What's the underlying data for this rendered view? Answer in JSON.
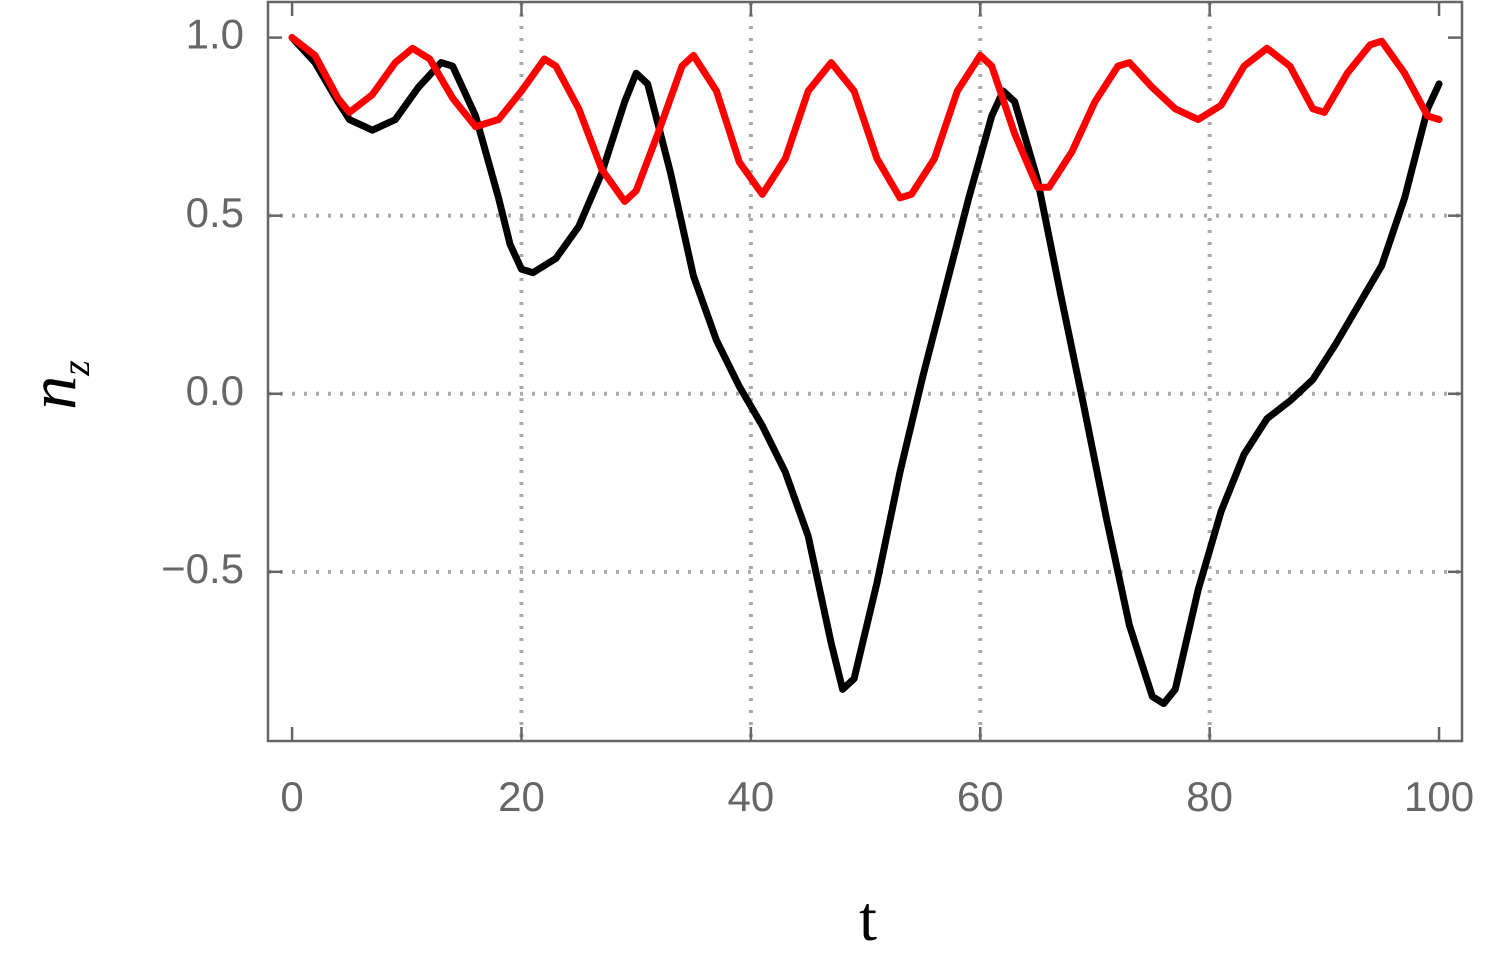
{
  "chart_data": {
    "type": "line",
    "xlabel": "t",
    "ylabel": {
      "base": "n",
      "subscript": "z"
    },
    "xlim": [
      -2.1,
      102
    ],
    "ylim": [
      -0.975,
      1.1
    ],
    "xticks": [
      0,
      20,
      40,
      60,
      80,
      100
    ],
    "yticks": [
      {
        "value": -0.5,
        "label": "−0.5"
      },
      {
        "value": 0,
        "label": "0.0"
      },
      0.5,
      {
        "value": 1,
        "label": "1.0"
      }
    ],
    "xgrid": [
      20,
      40,
      60,
      80
    ],
    "ygrid": [
      -0.5,
      0,
      0.5
    ],
    "series": [
      {
        "color": "#000000",
        "x": [
          0,
          2,
          4,
          5,
          7,
          9,
          11,
          13,
          14,
          16,
          18,
          19,
          20,
          21,
          23,
          25,
          27,
          29,
          30,
          31,
          33,
          35,
          37,
          39,
          41,
          43,
          45,
          47,
          48,
          49,
          51,
          53,
          55,
          57,
          59,
          61,
          62,
          63,
          65,
          67,
          69,
          71,
          73,
          75,
          76,
          77,
          79,
          81,
          83,
          85,
          87,
          89,
          91,
          93,
          95,
          97,
          99,
          100
        ],
        "values": [
          1.0,
          0.93,
          0.82,
          0.77,
          0.74,
          0.77,
          0.86,
          0.93,
          0.92,
          0.78,
          0.55,
          0.42,
          0.35,
          0.34,
          0.38,
          0.47,
          0.62,
          0.82,
          0.9,
          0.87,
          0.62,
          0.33,
          0.15,
          0.02,
          -0.09,
          -0.22,
          -0.4,
          -0.7,
          -0.83,
          -0.8,
          -0.53,
          -0.22,
          0.05,
          0.3,
          0.55,
          0.78,
          0.85,
          0.82,
          0.6,
          0.28,
          -0.03,
          -0.35,
          -0.65,
          -0.85,
          -0.87,
          -0.83,
          -0.55,
          -0.33,
          -0.17,
          -0.07,
          -0.02,
          0.04,
          0.14,
          0.25,
          0.36,
          0.55,
          0.8,
          0.87
        ]
      },
      {
        "color": "#ff0000",
        "x": [
          0,
          2,
          4,
          5,
          7,
          9,
          10.5,
          12,
          14,
          16,
          18,
          20,
          22,
          23,
          25,
          27,
          29,
          30,
          32,
          34,
          35,
          37,
          39,
          41,
          43,
          45,
          47,
          49,
          51,
          53,
          54,
          56,
          58,
          60,
          61,
          63,
          65,
          66,
          68,
          70,
          72,
          73,
          75,
          77,
          79,
          81,
          83,
          85,
          87,
          89,
          90,
          92,
          94,
          95,
          97,
          99,
          100
        ],
        "values": [
          1.0,
          0.95,
          0.83,
          0.79,
          0.84,
          0.93,
          0.97,
          0.94,
          0.83,
          0.75,
          0.77,
          0.85,
          0.94,
          0.92,
          0.8,
          0.63,
          0.54,
          0.57,
          0.74,
          0.92,
          0.95,
          0.85,
          0.65,
          0.56,
          0.66,
          0.85,
          0.93,
          0.85,
          0.66,
          0.55,
          0.56,
          0.66,
          0.85,
          0.95,
          0.92,
          0.73,
          0.58,
          0.58,
          0.68,
          0.82,
          0.92,
          0.93,
          0.86,
          0.8,
          0.77,
          0.81,
          0.92,
          0.97,
          0.92,
          0.8,
          0.79,
          0.9,
          0.98,
          0.99,
          0.9,
          0.78,
          0.77
        ]
      }
    ]
  }
}
